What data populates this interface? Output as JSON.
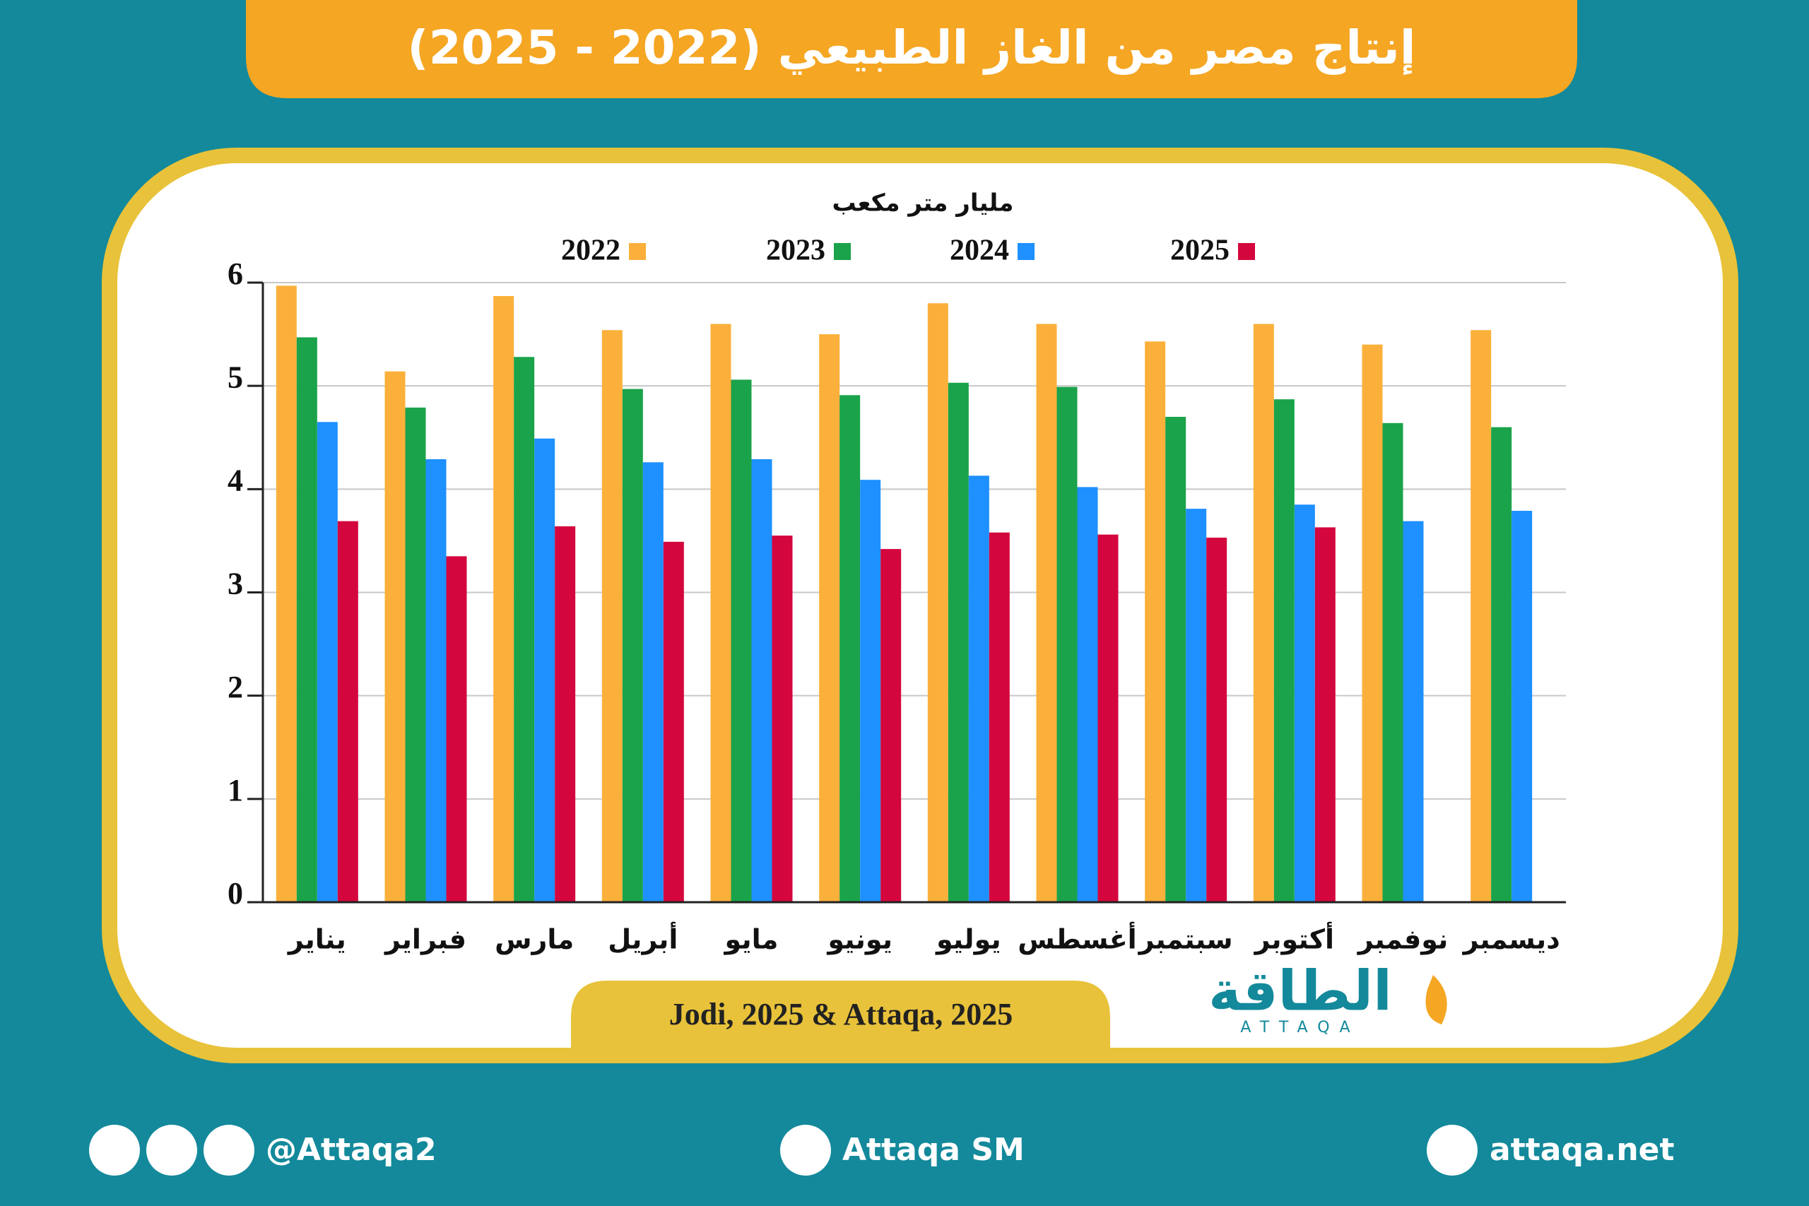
{
  "chart_data": {
    "type": "bar",
    "title": "إنتاج مصر من الغاز الطبيعي (2022 - 2025)",
    "unit": "مليار متر مكعب",
    "source": "Jodi, 2025 & Attaqa, 2025",
    "categories": [
      "يناير",
      "فبراير",
      "مارس",
      "أبريل",
      "مايو",
      "يونيو",
      "يوليو",
      "أغسطس",
      "سبتمبر",
      "أكتوبر",
      "نوفمبر",
      "ديسمبر"
    ],
    "series": [
      {
        "name": "2022",
        "color": "#fbb03b",
        "values": [
          5.97,
          5.14,
          5.87,
          5.54,
          5.6,
          5.5,
          5.8,
          5.6,
          5.43,
          5.6,
          5.4,
          5.54
        ]
      },
      {
        "name": "2023",
        "color": "#1aa34a",
        "values": [
          5.47,
          4.79,
          5.28,
          4.97,
          5.06,
          4.91,
          5.03,
          4.99,
          4.7,
          4.87,
          4.64,
          4.6
        ]
      },
      {
        "name": "2024",
        "color": "#1e90ff",
        "values": [
          4.65,
          4.29,
          4.49,
          4.26,
          4.29,
          4.09,
          4.13,
          4.02,
          3.81,
          3.85,
          3.69,
          3.79
        ]
      },
      {
        "name": "2025",
        "color": "#d4063e",
        "values": [
          3.69,
          3.35,
          3.64,
          3.49,
          3.55,
          3.42,
          3.58,
          3.56,
          3.53,
          3.63,
          null,
          null
        ]
      }
    ],
    "ylim": [
      0,
      6
    ],
    "yticks": [
      0,
      1,
      2,
      3,
      4,
      5,
      6
    ],
    "grid": true
  },
  "branding": {
    "logo": "الطاقة",
    "logo_latin": "ATTAQA"
  },
  "footer": {
    "social": "@Attaqa2",
    "youtube": "Attaqa SM",
    "website": "attaqa.net"
  }
}
